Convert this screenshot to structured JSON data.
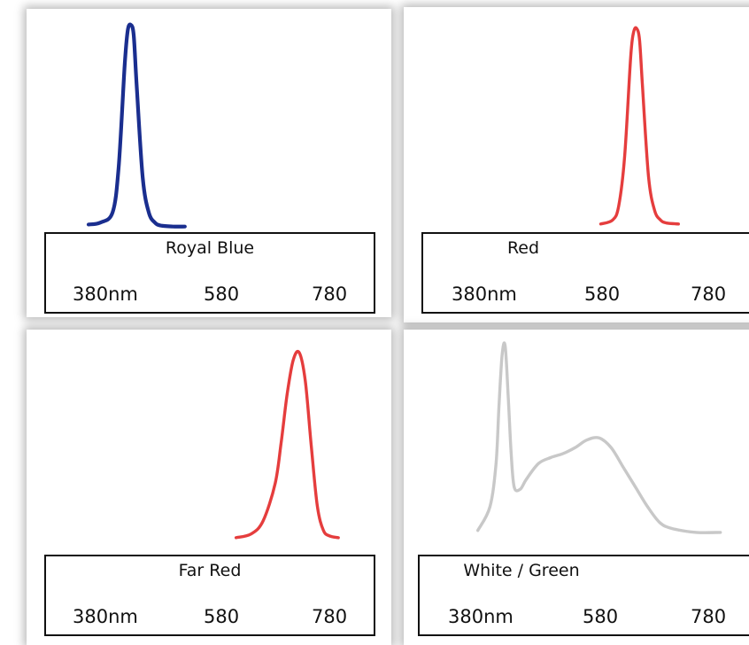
{
  "chart_data": [
    {
      "type": "line",
      "title": "Royal Blue",
      "tick_labels": [
        "380nm",
        "580",
        "780"
      ],
      "xlim": [
        380,
        780
      ],
      "x": [
        380,
        400,
        420,
        430,
        440,
        445,
        450,
        455,
        460,
        470,
        480,
        490,
        500,
        520,
        540
      ],
      "y": [
        0.02,
        0.03,
        0.08,
        0.3,
        0.8,
        0.97,
        1.0,
        0.95,
        0.7,
        0.25,
        0.08,
        0.03,
        0.015,
        0.01,
        0.01
      ],
      "color": "#1a2e8f"
    },
    {
      "type": "line",
      "title": "Red",
      "tick_labels": [
        "380nm",
        "580",
        "780"
      ],
      "xlim": [
        380,
        780
      ],
      "x": [
        600,
        620,
        630,
        640,
        650,
        655,
        660,
        665,
        670,
        680,
        690,
        700,
        710,
        730
      ],
      "y": [
        0.01,
        0.03,
        0.1,
        0.35,
        0.85,
        0.98,
        1.0,
        0.94,
        0.7,
        0.25,
        0.08,
        0.03,
        0.015,
        0.01
      ],
      "color": "#e53d3d"
    },
    {
      "type": "line",
      "title": "Far Red",
      "tick_labels": [
        "380nm",
        "580",
        "780"
      ],
      "xlim": [
        380,
        780
      ],
      "x": [
        625,
        650,
        670,
        690,
        700,
        710,
        720,
        730,
        740,
        750,
        760,
        770,
        780,
        795
      ],
      "y": [
        0.01,
        0.03,
        0.1,
        0.3,
        0.52,
        0.78,
        0.96,
        1.0,
        0.85,
        0.5,
        0.18,
        0.05,
        0.02,
        0.01
      ],
      "color": "#e53d3d"
    },
    {
      "type": "line",
      "title": "White / Green",
      "tick_labels": [
        "380nm",
        "580",
        "780"
      ],
      "xlim": [
        380,
        780
      ],
      "x": [
        400,
        420,
        430,
        435,
        440,
        445,
        450,
        455,
        460,
        470,
        480,
        500,
        520,
        540,
        560,
        580,
        600,
        620,
        640,
        660,
        680,
        700,
        720,
        760,
        800
      ],
      "y": [
        0.06,
        0.18,
        0.4,
        0.7,
        0.95,
        1.0,
        0.75,
        0.45,
        0.28,
        0.27,
        0.32,
        0.4,
        0.43,
        0.45,
        0.48,
        0.52,
        0.53,
        0.48,
        0.38,
        0.28,
        0.18,
        0.1,
        0.07,
        0.05,
        0.05
      ],
      "color": "#c8c8c8"
    }
  ]
}
